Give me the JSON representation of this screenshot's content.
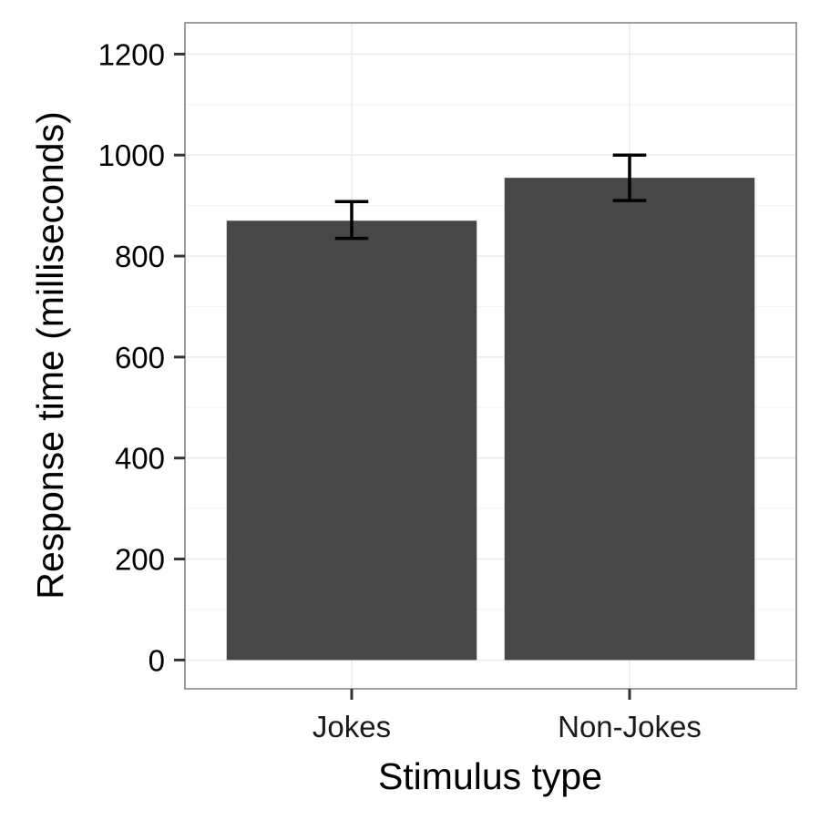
{
  "chart_data": {
    "type": "bar",
    "title": "",
    "xlabel": "Stimulus type",
    "ylabel": "Response time (milliseconds)",
    "categories": [
      "Jokes",
      "Non-Jokes"
    ],
    "values": [
      870,
      955
    ],
    "error_bars": [
      {
        "low": 835,
        "high": 908
      },
      {
        "low": 910,
        "high": 1000
      }
    ],
    "ylim": [
      -57,
      1262
    ],
    "yticks": [
      0,
      200,
      400,
      600,
      800,
      1000,
      1200
    ],
    "ytick_labels": [
      "0",
      "200",
      "400",
      "600",
      "800",
      "1000",
      "1200"
    ],
    "grid": true,
    "legend": "none",
    "colors": {
      "bar": "#474747",
      "error_bar": "#000000",
      "grid_major": "#ebebeb",
      "grid_minor": "#f5f5f5",
      "panel_border": "#7f7f7f"
    }
  }
}
